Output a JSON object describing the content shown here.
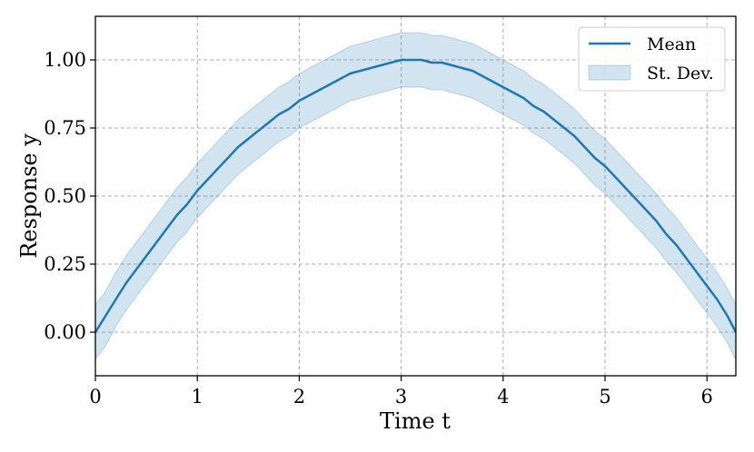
{
  "chart_data": {
    "type": "line",
    "title": "",
    "xlabel": "Time t",
    "ylabel": "Response y",
    "xlim": [
      0,
      6.283
    ],
    "ylim": [
      -0.16,
      1.16
    ],
    "xticks": [
      0,
      1,
      2,
      3,
      4,
      5,
      6
    ],
    "xtick_labels": [
      "0",
      "1",
      "2",
      "3",
      "4",
      "5",
      "6"
    ],
    "yticks": [
      0,
      0.25,
      0.5,
      0.75,
      1.0
    ],
    "ytick_labels": [
      "0.00",
      "0.25",
      "0.50",
      "0.75",
      "1.00"
    ],
    "grid": true,
    "legend_position": "top-right",
    "colors": {
      "line": "#1f77b4",
      "band": "#1f77b4"
    },
    "series": [
      {
        "name": "Mean",
        "kind": "line",
        "x": [
          0,
          0.1,
          0.2,
          0.3,
          0.4,
          0.5,
          0.6,
          0.7,
          0.8,
          0.9,
          1.0,
          1.1,
          1.2,
          1.3,
          1.4,
          1.5,
          1.6,
          1.7,
          1.8,
          1.9,
          2.0,
          2.1,
          2.2,
          2.3,
          2.4,
          2.5,
          2.6,
          2.7,
          2.8,
          2.9,
          3.0,
          3.1,
          3.2,
          3.3,
          3.4,
          3.5,
          3.6,
          3.7,
          3.8,
          3.9,
          4.0,
          4.1,
          4.2,
          4.3,
          4.4,
          4.5,
          4.6,
          4.7,
          4.8,
          4.9,
          5.0,
          5.1,
          5.2,
          5.3,
          5.4,
          5.5,
          5.6,
          5.7,
          5.8,
          5.9,
          6.0,
          6.1,
          6.2,
          6.283
        ],
        "y": [
          0.0,
          0.06,
          0.12,
          0.18,
          0.23,
          0.28,
          0.33,
          0.38,
          0.43,
          0.47,
          0.52,
          0.56,
          0.6,
          0.64,
          0.68,
          0.71,
          0.74,
          0.77,
          0.8,
          0.82,
          0.85,
          0.87,
          0.89,
          0.91,
          0.93,
          0.95,
          0.96,
          0.97,
          0.98,
          0.99,
          1.0,
          1.0,
          1.0,
          0.99,
          0.99,
          0.98,
          0.97,
          0.96,
          0.94,
          0.92,
          0.9,
          0.88,
          0.86,
          0.83,
          0.81,
          0.78,
          0.75,
          0.72,
          0.68,
          0.64,
          0.61,
          0.57,
          0.53,
          0.49,
          0.45,
          0.41,
          0.36,
          0.32,
          0.27,
          0.22,
          0.17,
          0.12,
          0.06,
          0.0
        ]
      },
      {
        "name": "St. Dev.",
        "kind": "band",
        "x": [
          0,
          0.1,
          0.2,
          0.3,
          0.4,
          0.5,
          0.6,
          0.7,
          0.8,
          0.9,
          1.0,
          1.1,
          1.2,
          1.3,
          1.4,
          1.5,
          1.6,
          1.7,
          1.8,
          1.9,
          2.0,
          2.1,
          2.2,
          2.3,
          2.4,
          2.5,
          2.6,
          2.7,
          2.8,
          2.9,
          3.0,
          3.1,
          3.2,
          3.3,
          3.4,
          3.5,
          3.6,
          3.7,
          3.8,
          3.9,
          4.0,
          4.1,
          4.2,
          4.3,
          4.4,
          4.5,
          4.6,
          4.7,
          4.8,
          4.9,
          5.0,
          5.1,
          5.2,
          5.3,
          5.4,
          5.5,
          5.6,
          5.7,
          5.8,
          5.9,
          6.0,
          6.1,
          6.2,
          6.283
        ],
        "lower": [
          -0.1,
          -0.05,
          0.02,
          0.08,
          0.13,
          0.18,
          0.23,
          0.28,
          0.33,
          0.37,
          0.42,
          0.46,
          0.5,
          0.54,
          0.58,
          0.61,
          0.64,
          0.67,
          0.7,
          0.72,
          0.75,
          0.77,
          0.79,
          0.81,
          0.83,
          0.85,
          0.86,
          0.87,
          0.88,
          0.89,
          0.9,
          0.9,
          0.9,
          0.89,
          0.89,
          0.88,
          0.87,
          0.86,
          0.84,
          0.82,
          0.8,
          0.78,
          0.76,
          0.73,
          0.71,
          0.68,
          0.65,
          0.62,
          0.58,
          0.54,
          0.51,
          0.47,
          0.43,
          0.39,
          0.35,
          0.31,
          0.26,
          0.22,
          0.17,
          0.12,
          0.07,
          0.02,
          -0.04,
          -0.1
        ],
        "upper": [
          0.1,
          0.15,
          0.22,
          0.28,
          0.33,
          0.38,
          0.43,
          0.48,
          0.53,
          0.57,
          0.62,
          0.66,
          0.7,
          0.74,
          0.78,
          0.81,
          0.84,
          0.87,
          0.9,
          0.92,
          0.95,
          0.97,
          0.99,
          1.01,
          1.03,
          1.05,
          1.06,
          1.07,
          1.08,
          1.09,
          1.1,
          1.1,
          1.1,
          1.09,
          1.09,
          1.08,
          1.07,
          1.06,
          1.04,
          1.02,
          1.0,
          0.98,
          0.96,
          0.93,
          0.91,
          0.88,
          0.85,
          0.82,
          0.78,
          0.74,
          0.71,
          0.67,
          0.63,
          0.59,
          0.55,
          0.51,
          0.46,
          0.42,
          0.37,
          0.32,
          0.27,
          0.22,
          0.16,
          0.1
        ]
      }
    ]
  }
}
